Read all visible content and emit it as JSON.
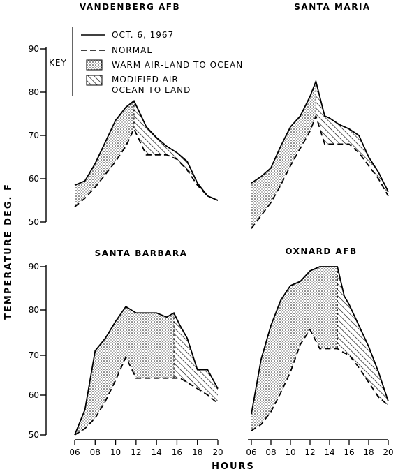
{
  "chart_data": {
    "type": "line",
    "ylabel": "TEMPERATURE DEG. F",
    "xlabel": "HOURS",
    "y_ticks": [
      "50",
      "60",
      "70",
      "80",
      "90"
    ],
    "x_ticks": [
      "06",
      "08",
      "10",
      "12",
      "14",
      "16",
      "18",
      "20"
    ],
    "ylim": [
      50,
      90
    ],
    "xlim": [
      6,
      20
    ],
    "key": {
      "label": "KEY",
      "items": [
        {
          "style": "solid",
          "text": "OCT. 6, 1967"
        },
        {
          "style": "dashed",
          "text": "NORMAL"
        },
        {
          "style": "dotted-fill",
          "text": "WARM AIR-LAND TO OCEAN"
        },
        {
          "style": "hatch-fill",
          "text": "MODIFIED AIR-",
          "text2": "OCEAN TO LAND"
        }
      ]
    },
    "panels": [
      {
        "title": "VANDENBERG AFB",
        "series": [
          {
            "name": "OCT. 6, 1967",
            "x": [
              6,
              7,
              8,
              9,
              10,
              11,
              11.8,
              13,
              14,
              15,
              16,
              17,
              18,
              19,
              20
            ],
            "y": [
              58.5,
              59.5,
              63.5,
              68.5,
              73.5,
              76.5,
              78,
              72,
              69.5,
              67.5,
              66,
              64,
              59,
              56,
              55
            ]
          },
          {
            "name": "NORMAL",
            "x": [
              6,
              7,
              8,
              9,
              10,
              11,
              11.8,
              13,
              14,
              15,
              16,
              17,
              18,
              19,
              20
            ],
            "y": [
              53.5,
              55.5,
              58,
              61,
              64,
              67.5,
              71.5,
              65.5,
              65.5,
              65.5,
              64.5,
              62,
              58.5,
              56,
              55
            ]
          }
        ]
      },
      {
        "title": "SANTA MARIA",
        "series": [
          {
            "name": "OCT. 6, 1967",
            "x": [
              6,
              7,
              8,
              9,
              10,
              11,
              12,
              12.6,
              13.5,
              14,
              15,
              16,
              17,
              18,
              19,
              20
            ],
            "y": [
              59,
              60.5,
              62.5,
              67.5,
              72,
              74.5,
              79,
              82.5,
              74.5,
              74,
              72.5,
              71.5,
              70,
              65,
              61.5,
              57
            ]
          },
          {
            "name": "NORMAL",
            "x": [
              6,
              7,
              8,
              9,
              10,
              11,
              12,
              12.6,
              13.5,
              14,
              15,
              16,
              17,
              18,
              19,
              20
            ],
            "y": [
              48.5,
              51.5,
              54.5,
              58.5,
              63,
              67,
              71,
              74.5,
              68,
              68,
              68,
              68,
              66,
              63,
              60,
              56
            ]
          }
        ]
      },
      {
        "title": "SANTA BARBARA",
        "series": [
          {
            "name": "OCT. 6, 1967",
            "x": [
              6,
              7,
              8,
              9,
              10,
              11,
              12,
              13,
              14,
              15,
              15.7,
              16.3,
              17,
              18,
              19,
              20
            ],
            "y": [
              50,
              56,
              70,
              73,
              77,
              80.5,
              79,
              79,
              79,
              78,
              79,
              76,
              73,
              65.5,
              65.5,
              61
            ]
          },
          {
            "name": "NORMAL",
            "x": [
              6,
              7,
              8,
              9,
              10,
              11,
              12,
              13,
              14,
              15,
              15.7,
              16.3,
              17,
              18,
              19,
              20
            ],
            "y": [
              50,
              51.5,
              54,
              58,
              63,
              68.5,
              63.5,
              63.5,
              63.5,
              63.5,
              63.5,
              63.5,
              62.5,
              61,
              59.5,
              57.5
            ]
          }
        ]
      },
      {
        "title": "OXNARD AFB",
        "series": [
          {
            "name": "OCT. 6, 1967",
            "x": [
              6,
              7,
              8,
              9,
              10,
              11,
              12,
              13,
              14,
              14.8,
              15.5,
              16,
              17,
              18,
              19,
              20
            ],
            "y": [
              55,
              68,
              76,
              82,
              85.5,
              86.5,
              89,
              90,
              90,
              90,
              83,
              81,
              76,
              71,
              65,
              58
            ]
          },
          {
            "name": "NORMAL",
            "x": [
              6,
              7,
              8,
              9,
              10,
              11,
              12,
              13,
              14,
              14.8,
              15.5,
              16,
              17,
              18,
              19,
              20
            ],
            "y": [
              51,
              52.5,
              55.5,
              60,
              65,
              71.5,
              75,
              70.5,
              70.5,
              70.5,
              69.5,
              69,
              66,
              62.5,
              59,
              57
            ]
          }
        ]
      }
    ]
  }
}
